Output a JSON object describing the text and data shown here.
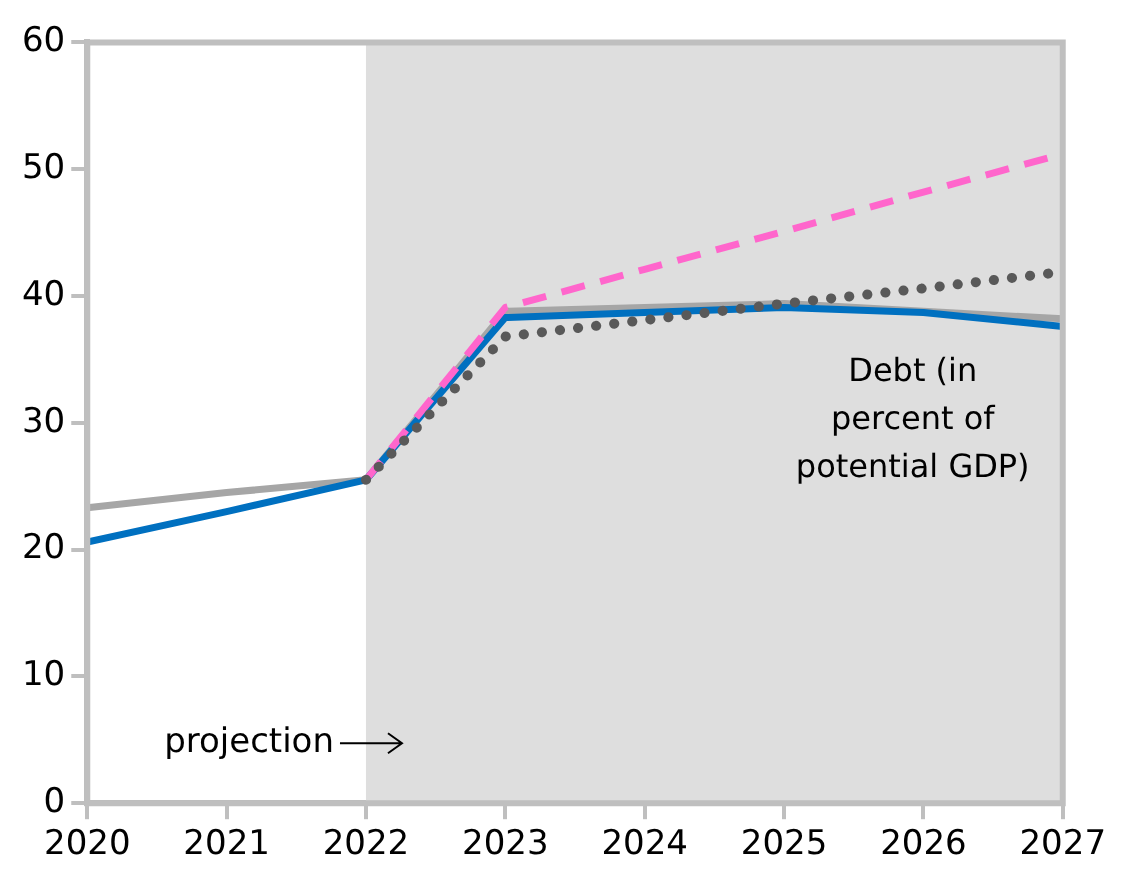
{
  "chart_data": {
    "type": "line",
    "x": [
      2020,
      2021,
      2022,
      2023,
      2024,
      2025,
      2026,
      2027
    ],
    "series": [
      {
        "color": "#a6a6a6",
        "values": [
          23.3,
          24.5,
          25.5,
          38.8,
          39.1,
          39.4,
          38.8,
          38.2
        ]
      },
      {
        "color": "#0070c0",
        "values": [
          20.6,
          23,
          25.5,
          38.3,
          38.7,
          39.1,
          38.7,
          37.6
        ]
      },
      {
        "color": "#ff66cc",
        "line_style": "dashed",
        "values": [
          null,
          null,
          25.5,
          39.1,
          42.1,
          45.1,
          48.2,
          51.2
        ]
      },
      {
        "color": "#595959",
        "line_style": "dotted",
        "values": [
          null,
          null,
          25.5,
          36.8,
          38.1,
          39.4,
          40.6,
          41.9
        ]
      }
    ],
    "xlim": [
      2020,
      2027
    ],
    "xticks": [
      2020,
      2021,
      2022,
      2023,
      2024,
      2025,
      2026,
      2027
    ],
    "ylim": [
      0,
      60
    ],
    "yticks": [
      0,
      10,
      20,
      30,
      40,
      50,
      60
    ],
    "bands": [
      {
        "axis": "x",
        "from": 2022,
        "to": 2027,
        "label": "projection",
        "color": "#dedede"
      }
    ],
    "annotations": [
      "Debt (in percent of potential GDP)"
    ],
    "grid": false,
    "legend": false,
    "marker": "none"
  }
}
